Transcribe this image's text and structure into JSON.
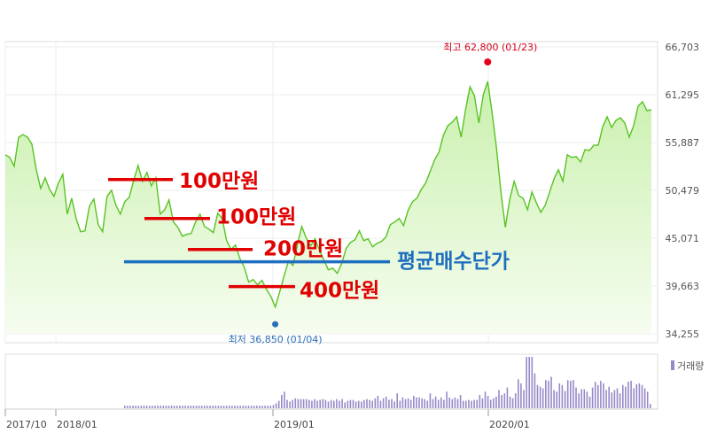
{
  "chart_data": {
    "type": "area",
    "price_axis": {
      "ticks": [
        "66,703",
        "61,295",
        "55,887",
        "50,479",
        "45,071",
        "39,663",
        "34,255"
      ],
      "values": [
        66703,
        61295,
        55887,
        50479,
        45071,
        39663,
        34255
      ],
      "range": [
        34255,
        66703
      ]
    },
    "x_labels": [
      "2017/10",
      "2018/01",
      "2019/01",
      "2020/01"
    ],
    "series": [
      {
        "values": [
          54500,
          54200,
          53200,
          56500,
          56800,
          56500,
          55700,
          52800,
          50700,
          51900,
          50600,
          49800,
          51300,
          52300,
          47800,
          49600,
          47300,
          45800,
          45900,
          48700,
          49500,
          46600,
          45800,
          49800,
          50500,
          48800,
          47800,
          49200,
          49700,
          51600,
          53300,
          51500,
          52500,
          51000,
          51900,
          47800,
          48300,
          49400,
          46900,
          46300,
          45300,
          45500,
          45600,
          46900,
          47800,
          46400,
          46100,
          45700,
          47900,
          47300,
          44800,
          43800,
          44300,
          42800,
          41800,
          40100,
          40400,
          39800,
          40300,
          39300,
          38500,
          37300,
          39000,
          40800,
          42500,
          42000,
          44300,
          46400,
          45100,
          44200,
          45000,
          43700,
          42600,
          41500,
          41700,
          41100,
          42200,
          43900,
          44600,
          44900,
          45900,
          44800,
          45000,
          44100,
          44500,
          44700,
          45200,
          46600,
          46900,
          47300,
          46500,
          48200,
          49200,
          49600,
          50600,
          51300,
          52600,
          53900,
          54800,
          56700,
          57800,
          58200,
          58800,
          56500,
          59600,
          62200,
          61200,
          58100,
          61300,
          62800,
          59300,
          55300,
          50300,
          46300,
          49500,
          51500,
          49900,
          49600,
          48300,
          50300,
          49100,
          48000,
          48800,
          50300,
          51800,
          52800,
          51500,
          54500,
          54200,
          54300,
          53700,
          55100,
          55000,
          55600,
          55600,
          57700,
          58800,
          57600,
          58400,
          58700,
          58100,
          56500,
          57800,
          60000,
          60500,
          59500,
          59600
        ]
      }
    ],
    "volume": {
      "legend": "거래량",
      "values": [
        3,
        3,
        3,
        3,
        3,
        3,
        3,
        3,
        3,
        3,
        3,
        3,
        3,
        3,
        3,
        3,
        3,
        3,
        3,
        3,
        3,
        3,
        3,
        3,
        3,
        3,
        3,
        3,
        3,
        3,
        3,
        3,
        3,
        3,
        3,
        3,
        3,
        3,
        3,
        3,
        3,
        3,
        3,
        3,
        3,
        3,
        3,
        3,
        3,
        3,
        3,
        3,
        3,
        3,
        4,
        6,
        9,
        16,
        20,
        10,
        8,
        10,
        12,
        11,
        11,
        11,
        11,
        10,
        9,
        11,
        9,
        10,
        11,
        10,
        8,
        10,
        9,
        11,
        9,
        11,
        7,
        9,
        10,
        10,
        8,
        9,
        8,
        10,
        11,
        10,
        9,
        12,
        15,
        9,
        12,
        14,
        10,
        11,
        8,
        18,
        9,
        13,
        11,
        12,
        10,
        15,
        13,
        13,
        12,
        11,
        9,
        18,
        11,
        14,
        10,
        13,
        10,
        20,
        13,
        11,
        13,
        11,
        16,
        9,
        9,
        10,
        9,
        10,
        10,
        16,
        12,
        20,
        15,
        10,
        12,
        14,
        22,
        16,
        18,
        25,
        14,
        12,
        18,
        35,
        30,
        22,
        62,
        62,
        62,
        42,
        28,
        26,
        24,
        34,
        33,
        38,
        22,
        20,
        30,
        28,
        21,
        34,
        33,
        34,
        25,
        18,
        23,
        23,
        20,
        14,
        25,
        32,
        28,
        33,
        30,
        22,
        26,
        19,
        22,
        24,
        18,
        28,
        26,
        32,
        33,
        24,
        29,
        30,
        28,
        24,
        20,
        5
      ]
    },
    "annotations": {
      "high": {
        "label": "최고 62,800 (01/23)",
        "value": 62800
      },
      "low": {
        "label": "최저 36,850 (01/04)",
        "value": 36850
      }
    },
    "overlays": {
      "buy_lines": [
        {
          "label": "100만원",
          "price": 51700
        },
        {
          "label": "100만원",
          "price": 47300
        },
        {
          "label": "200만원",
          "price": 43800
        },
        {
          "label": "400만원",
          "price": 39600
        }
      ],
      "avg_line": {
        "label": "평균매수단가",
        "price": 42400
      }
    },
    "colors": {
      "line": "#58c322",
      "area_top": "#c9f0ad",
      "area_bottom": "#f6fdf0",
      "volume_bar": "#9888c8",
      "buy_line": "#e00000",
      "buy_text": "#e00000",
      "avg_line": "#1f6fc0",
      "avg_text": "#1f6fc0",
      "high_marker": "#e8001c",
      "low_marker": "#2a6fb8"
    },
    "grid": true
  }
}
